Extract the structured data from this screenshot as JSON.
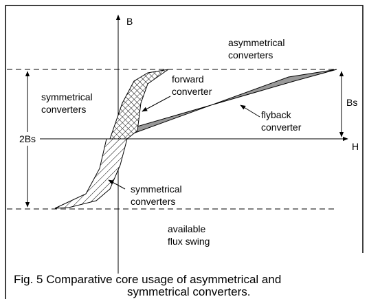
{
  "axes": {
    "y_label": "B",
    "x_label": "H"
  },
  "labels": [
    {
      "name": "asymmetrical",
      "lines": [
        "asymmetrical",
        "converters"
      ]
    },
    {
      "name": "symmetrical-upper",
      "lines": [
        "symmetrical",
        "converters"
      ]
    },
    {
      "name": "forward",
      "lines": [
        "forward",
        "converter"
      ]
    },
    {
      "name": "flyback",
      "lines": [
        "flyback",
        "converter"
      ]
    },
    {
      "name": "bs",
      "lines": [
        "Bs"
      ]
    },
    {
      "name": "two-bs",
      "lines": [
        "2Bs"
      ]
    },
    {
      "name": "symmetrical-lower",
      "lines": [
        "symmetrical",
        "converters"
      ]
    },
    {
      "name": "flux-swing",
      "lines": [
        "available",
        "flux swing"
      ]
    }
  ],
  "caption": {
    "lines": [
      "Fig. 5  Comparative core usage of asymmetrical and",
      "symmetrical converters."
    ]
  }
}
